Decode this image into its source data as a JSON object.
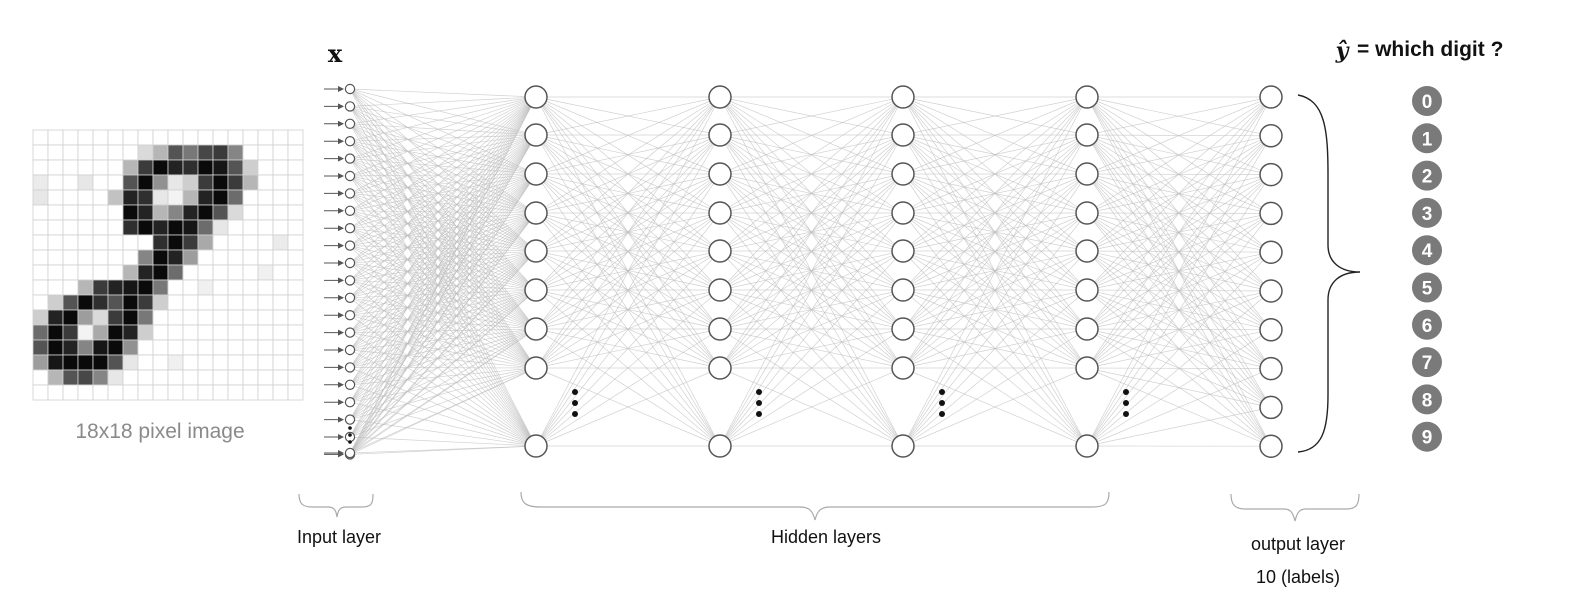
{
  "image_caption": "18x18 pixel image",
  "input_symbol": "x",
  "output_heading": {
    "symbol": "ŷ",
    "text": "= which digit ?"
  },
  "digits": [
    "0",
    "1",
    "2",
    "3",
    "4",
    "5",
    "6",
    "7",
    "8",
    "9"
  ],
  "layer_labels": {
    "input": "Input layer",
    "hidden": "Hidden layers",
    "output": "output layer",
    "output_sub": "10 (labels)"
  },
  "network": {
    "input_nodes_shown": 22,
    "hidden_layers": 4,
    "hidden_nodes_shown": 9,
    "output_nodes": 10
  },
  "colors": {
    "node_stroke": "#555555",
    "edge": "#bdbdbd",
    "digit_badge": "#7a7a7a",
    "caption_gray": "#8a8a8a"
  }
}
